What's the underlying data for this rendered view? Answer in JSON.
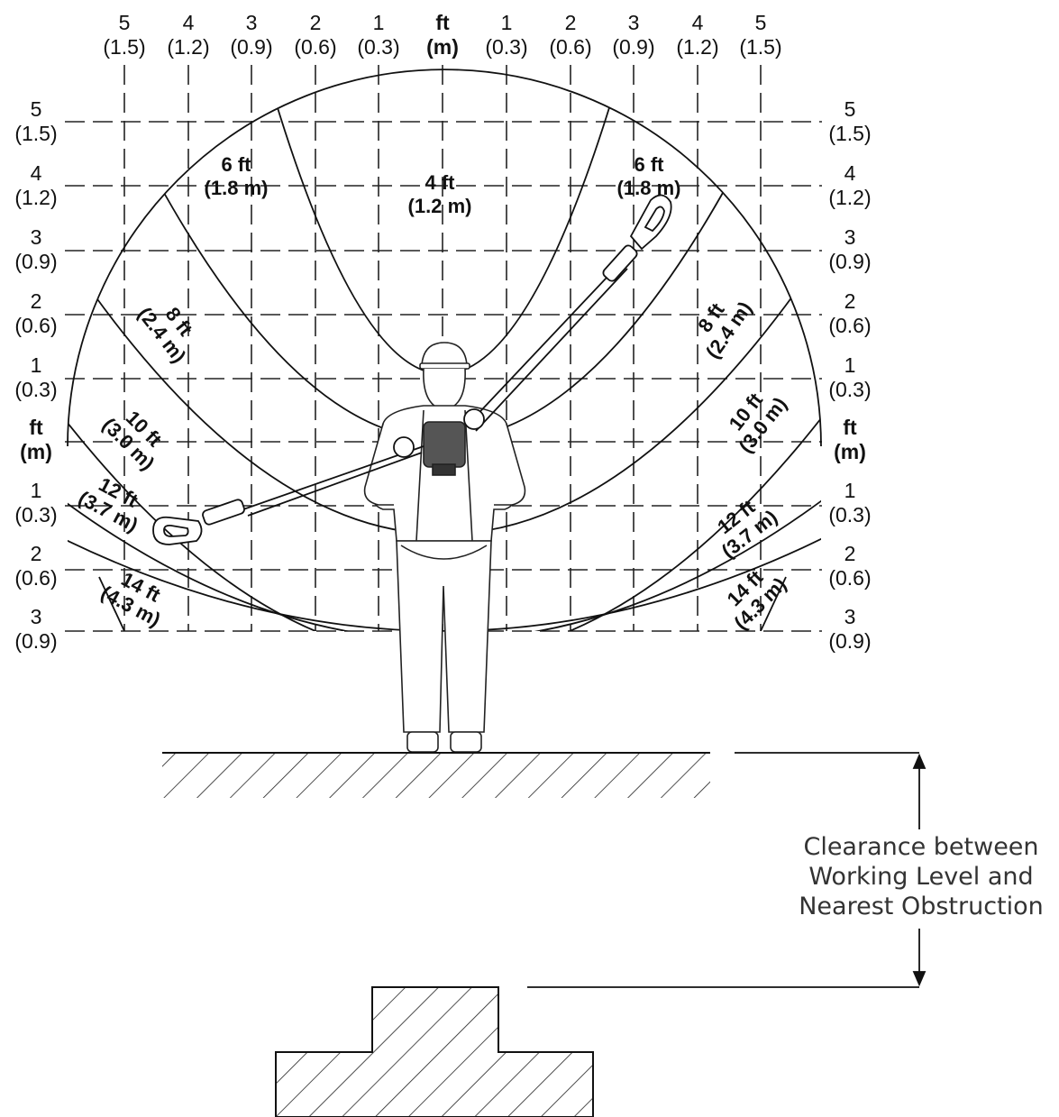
{
  "top_axis": [
    {
      "ft": "5",
      "m": "(1.5)"
    },
    {
      "ft": "4",
      "m": "(1.2)"
    },
    {
      "ft": "3",
      "m": "(0.9)"
    },
    {
      "ft": "2",
      "m": "(0.6)"
    },
    {
      "ft": "1",
      "m": "(0.3)"
    },
    {
      "ft": "ft",
      "m": "(m)"
    },
    {
      "ft": "1",
      "m": "(0.3)"
    },
    {
      "ft": "2",
      "m": "(0.6)"
    },
    {
      "ft": "3",
      "m": "(0.9)"
    },
    {
      "ft": "4",
      "m": "(1.2)"
    },
    {
      "ft": "5",
      "m": "(1.5)"
    }
  ],
  "side_axis": [
    {
      "ft": "5",
      "m": "(1.5)"
    },
    {
      "ft": "4",
      "m": "(1.2)"
    },
    {
      "ft": "3",
      "m": "(0.9)"
    },
    {
      "ft": "2",
      "m": "(0.6)"
    },
    {
      "ft": "1",
      "m": "(0.3)"
    },
    {
      "ft": "ft",
      "m": "(m)"
    },
    {
      "ft": "1",
      "m": "(0.3)"
    },
    {
      "ft": "2",
      "m": "(0.6)"
    },
    {
      "ft": "3",
      "m": "(0.9)"
    }
  ],
  "zones": {
    "z4_center": {
      "ft": "4 ft",
      "m": "(1.2 m)"
    },
    "z6_left": {
      "ft": "6 ft",
      "m": "(1.8 m)"
    },
    "z6_right": {
      "ft": "6 ft",
      "m": "(1.8 m)"
    },
    "z8_left": {
      "ft": "8 ft",
      "m": "(2.4 m)"
    },
    "z8_right": {
      "ft": "8 ft",
      "m": "(2.4 m)"
    },
    "z10_left": {
      "ft": "10 ft",
      "m": "(3.0 m)"
    },
    "z10_right": {
      "ft": "10 ft",
      "m": "(3.0 m)"
    },
    "z12_left": {
      "ft": "12 ft",
      "m": "(3.7 m)"
    },
    "z12_right": {
      "ft": "12 ft",
      "m": "(3.7 m)"
    },
    "z14_left": {
      "ft": "14 ft",
      "m": "(4.3 m)"
    },
    "z14_right": {
      "ft": "14 ft",
      "m": "(4.3 m)"
    }
  },
  "clearance_label": [
    "Clearance between",
    "Working Level and",
    "Nearest Obstruction"
  ]
}
